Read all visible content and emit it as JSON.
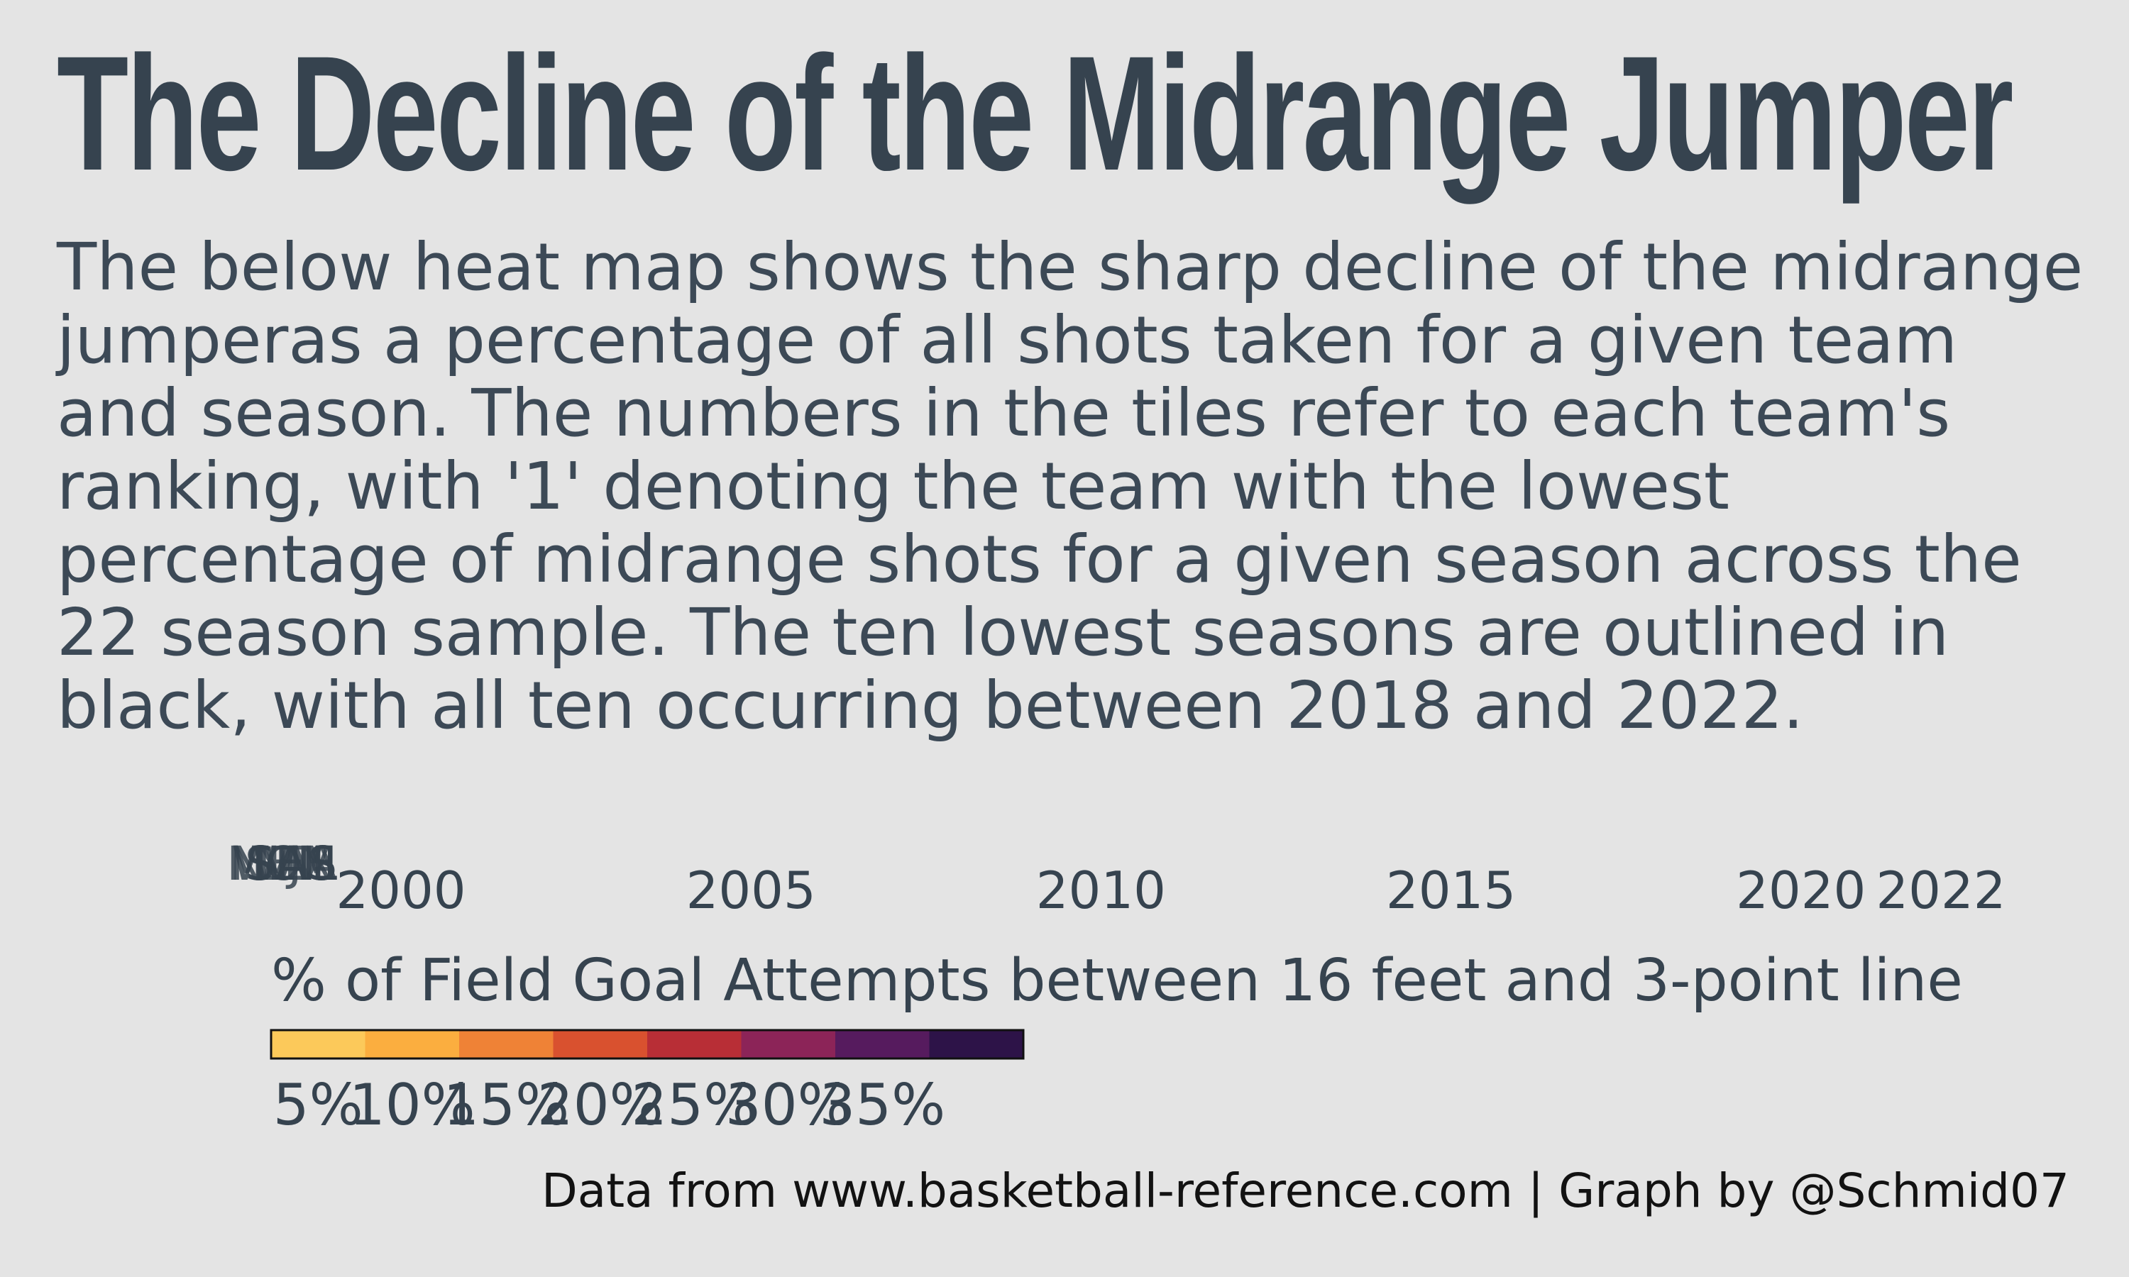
{
  "header": {
    "title": "The Decline of the Midrange Jumper",
    "subtitle": "The below heat map shows the sharp decline of the midrange  jumperas a percentage of all shots taken for a given team and season. The numbers in the tiles refer to each team's ranking, with '1' denoting the team with the lowest percentage of midrange shots for a given season across the 22 season sample. The ten lowest seasons are outlined in black, with all ten occurring between 2018 and 2022."
  },
  "caption": "Data from www.basketball-reference.com | Graph by @Schmid07",
  "colors": {
    "text": "#36434f",
    "background": "#e4e4e4",
    "scale": [
      "#fcc95a",
      "#fbae3f",
      "#ef8236",
      "#d9512f",
      "#b82e36",
      "#8c2458",
      "#561b5e",
      "#2d1348"
    ]
  },
  "chart_data": {
    "type": "heatmap",
    "xlabel": "",
    "ylabel": "",
    "x_ticks": [
      2000,
      2005,
      2010,
      2015,
      2020,
      2022
    ],
    "xlim": [
      2000,
      2022
    ],
    "y_labels_overlapping": [
      "WAS",
      "SAS",
      "SEA",
      "NJN",
      "NOH",
      "MIL",
      "MEM",
      "LAL"
    ],
    "legend": {
      "title": "% of Field Goal Attempts between 16 feet and 3-point line",
      "tick_labels": [
        "5%",
        "10%",
        "15%",
        "20%",
        "25%",
        "30%",
        "35%"
      ],
      "tick_values": [
        5,
        10,
        15,
        20,
        25,
        30,
        35
      ],
      "range": [
        2.5,
        42.5
      ],
      "placement": "bottom-left"
    }
  }
}
